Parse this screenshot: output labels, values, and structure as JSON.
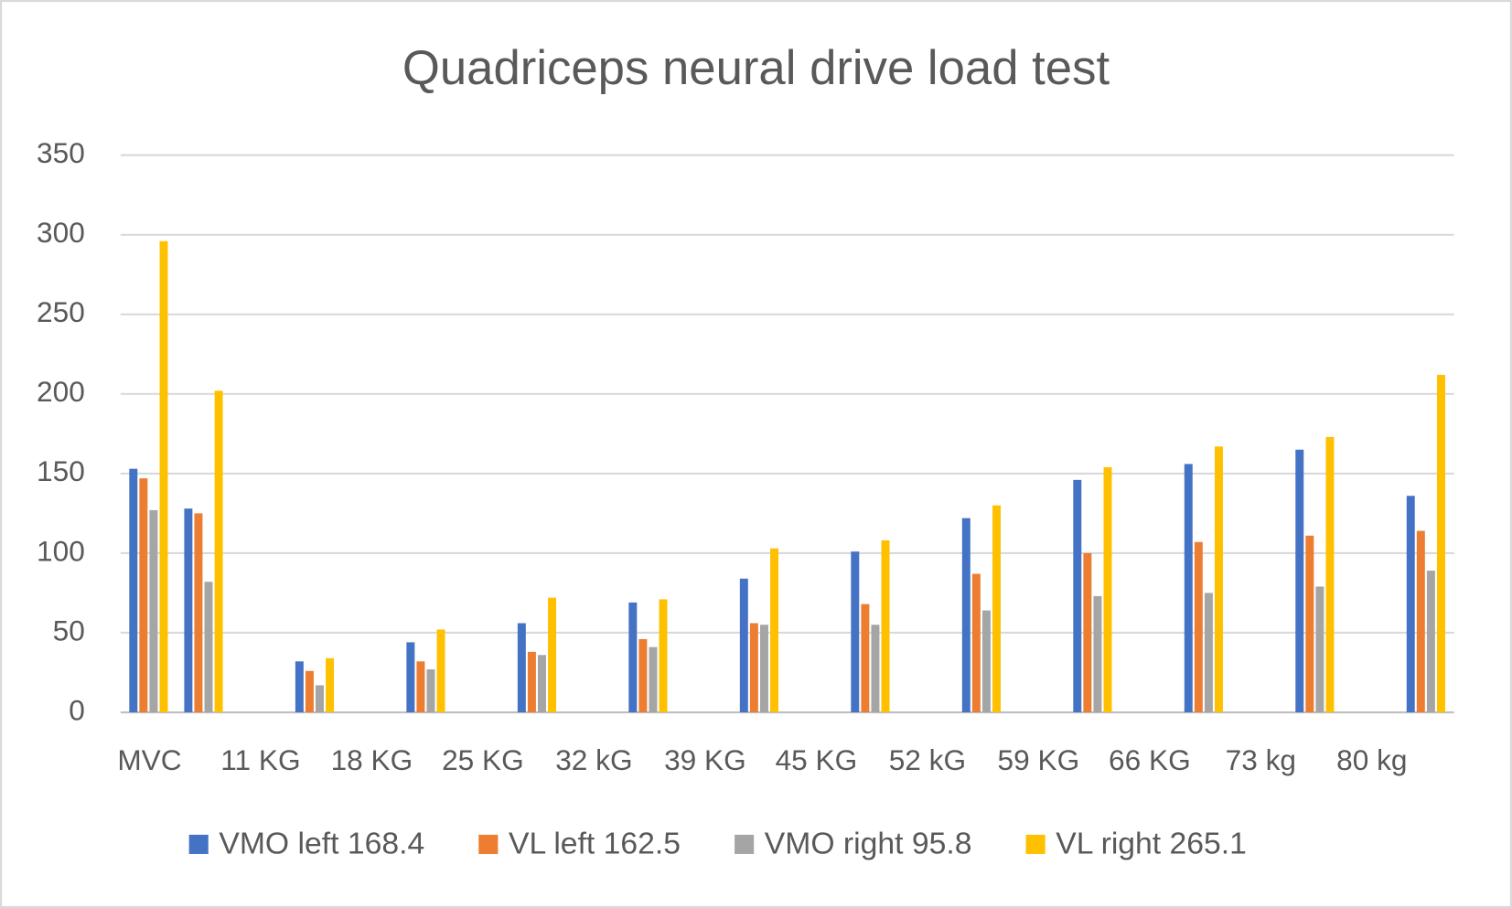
{
  "chart_data": {
    "type": "bar",
    "title": "Quadriceps neural drive load test",
    "categories": [
      "MVC",
      null,
      "11 KG",
      "18 KG",
      "25 KG",
      "32 kG",
      "39 KG",
      "45 KG",
      "52 kG",
      "59 KG",
      "66 KG",
      "73 kg",
      "80 kg"
    ],
    "series": [
      {
        "name": "VMO left 168.4",
        "color": "#4472c4",
        "values": [
          153,
          128,
          32,
          44,
          56,
          69,
          84,
          101,
          122,
          146,
          156,
          165,
          136
        ]
      },
      {
        "name": "VL left 162.5",
        "color": "#ed7d31",
        "values": [
          147,
          125,
          26,
          32,
          38,
          46,
          56,
          68,
          87,
          100,
          107,
          111,
          114
        ]
      },
      {
        "name": "VMO right 95.8",
        "color": "#a5a5a5",
        "values": [
          127,
          82,
          17,
          27,
          36,
          41,
          55,
          55,
          64,
          73,
          75,
          79,
          89
        ]
      },
      {
        "name": "VL right 265.1",
        "color": "#ffc000",
        "values": [
          296,
          202,
          34,
          52,
          72,
          71,
          103,
          108,
          130,
          154,
          167,
          173,
          212
        ]
      }
    ],
    "ylim": [
      0,
      350
    ],
    "yticks": [
      0,
      50,
      100,
      150,
      200,
      250,
      300,
      350
    ],
    "grid": true,
    "legend": "bottom"
  }
}
